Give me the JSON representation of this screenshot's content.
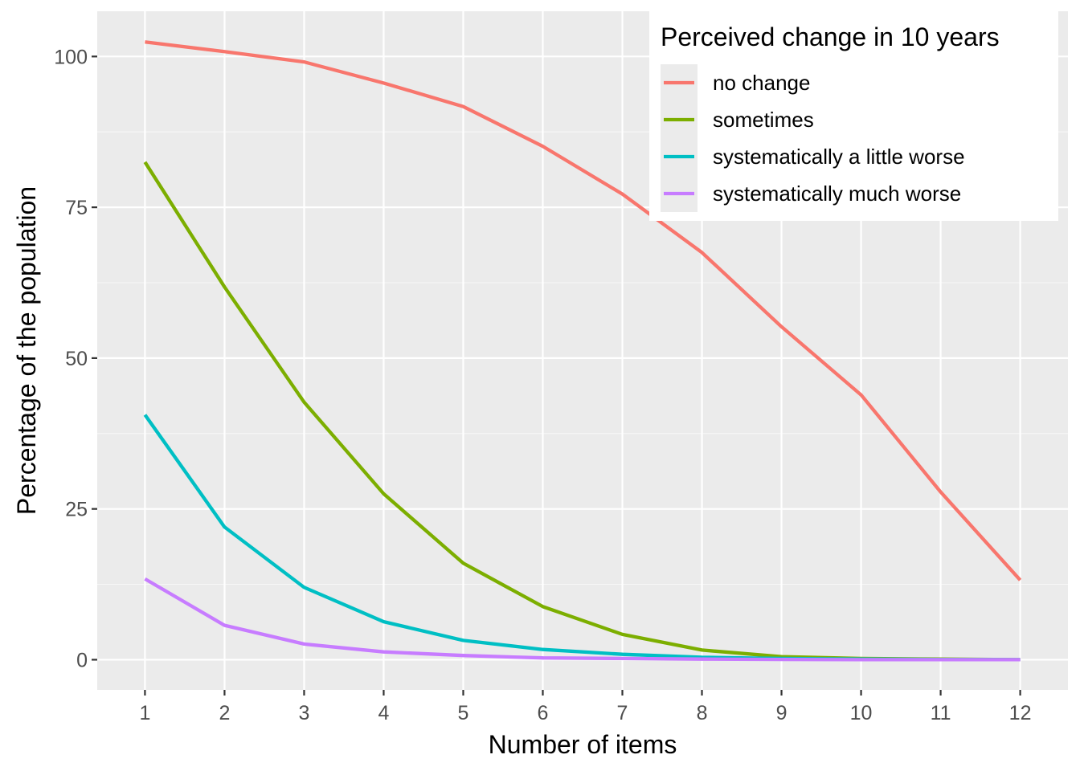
{
  "chart_data": {
    "type": "line",
    "xlabel": "Number of items",
    "ylabel": "Percentage of the population",
    "x": [
      1,
      2,
      3,
      4,
      5,
      6,
      7,
      8,
      9,
      10,
      11,
      12
    ],
    "xlim": [
      0.4,
      12.6
    ],
    "ylim": [
      -5,
      107.5
    ],
    "yticks": [
      0,
      25,
      50,
      75,
      100
    ],
    "grid": true,
    "legend": {
      "title": "Perceived change in 10 years",
      "placement": "top-right"
    },
    "series": [
      {
        "name": "no change",
        "color": "#F8766D",
        "values": [
          102.4,
          100.8,
          99.1,
          95.6,
          91.7,
          85.1,
          77.2,
          67.5,
          55.2,
          43.9,
          27.8,
          13.2
        ]
      },
      {
        "name": "sometimes",
        "color": "#7CAE00",
        "values": [
          82.5,
          61.8,
          42.7,
          27.5,
          16.0,
          8.8,
          4.2,
          1.6,
          0.5,
          0.2,
          0.1,
          0.0
        ]
      },
      {
        "name": "systematically a little worse",
        "color": "#00BFC4",
        "values": [
          40.6,
          22.0,
          12.0,
          6.3,
          3.2,
          1.7,
          0.9,
          0.4,
          0.2,
          0.1,
          0.05,
          0.0
        ]
      },
      {
        "name": "systematically much worse",
        "color": "#C77CFF",
        "values": [
          13.4,
          5.7,
          2.6,
          1.3,
          0.7,
          0.3,
          0.2,
          0.1,
          0.05,
          0.0,
          0.0,
          0.0
        ]
      }
    ]
  }
}
